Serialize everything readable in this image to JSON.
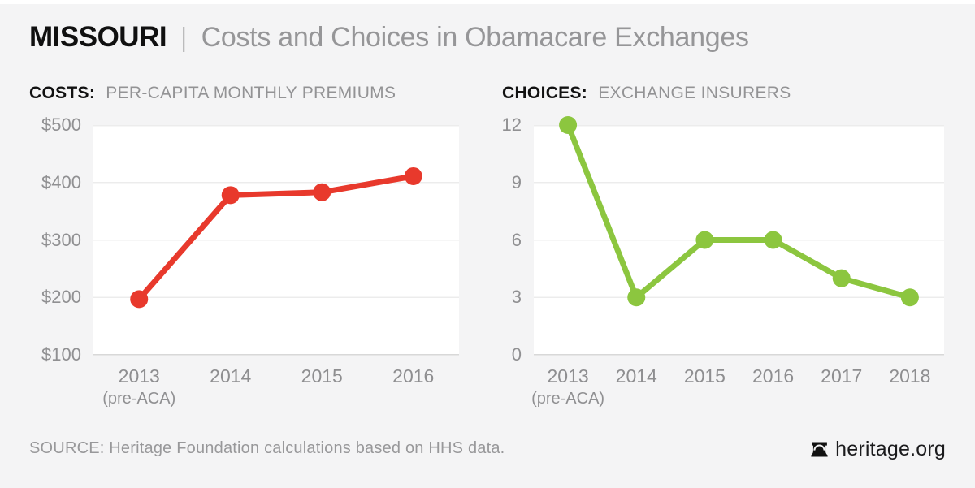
{
  "header": {
    "state": "MISSOURI",
    "separator": "|",
    "title": "Costs and Choices in Obamacare Exchanges"
  },
  "footer": {
    "source": "SOURCE: Heritage Foundation calculations based on HHS data.",
    "brand": "heritage.org",
    "brand_icon": "liberty-bell"
  },
  "colors": {
    "background": "#f4f4f5",
    "plot_bg": "#ffffff",
    "grid": "#ececec",
    "axis_line": "#d8d8d8",
    "text_dark": "#111111",
    "text_gray": "#939395",
    "costs_line": "#e8392c",
    "choices_line": "#8cc63f"
  },
  "chart_data": [
    {
      "type": "line",
      "key": "costs",
      "label_bold": "COSTS:",
      "label_rest": "PER-CAPITA MONTHLY PREMIUMS",
      "title": "COSTS: PER-CAPITA MONTHLY PREMIUMS",
      "categories": [
        "2013",
        "2014",
        "2015",
        "2016"
      ],
      "category_sublabels": [
        "(pre-ACA)",
        "",
        "",
        ""
      ],
      "values": [
        197,
        378,
        383,
        411
      ],
      "ylim": [
        100,
        500
      ],
      "yticks": [
        100,
        200,
        300,
        400,
        500
      ],
      "ytick_labels": [
        "$100",
        "$200",
        "$300",
        "$400",
        "$500"
      ],
      "color": "#e8392c",
      "grid": true,
      "legend": "none",
      "xlabel": "",
      "ylabel": ""
    },
    {
      "type": "line",
      "key": "choices",
      "label_bold": "CHOICES:",
      "label_rest": "EXCHANGE INSURERS",
      "title": "CHOICES: EXCHANGE INSURERS",
      "categories": [
        "2013",
        "2014",
        "2015",
        "2016",
        "2017",
        "2018"
      ],
      "category_sublabels": [
        "(pre-ACA)",
        "",
        "",
        "",
        "",
        ""
      ],
      "values": [
        12,
        3,
        6,
        6,
        4,
        3
      ],
      "ylim": [
        0,
        12
      ],
      "yticks": [
        0,
        3,
        6,
        9,
        12
      ],
      "ytick_labels": [
        "0",
        "3",
        "6",
        "9",
        "12"
      ],
      "color": "#8cc63f",
      "grid": true,
      "legend": "none",
      "xlabel": "",
      "ylabel": ""
    }
  ]
}
